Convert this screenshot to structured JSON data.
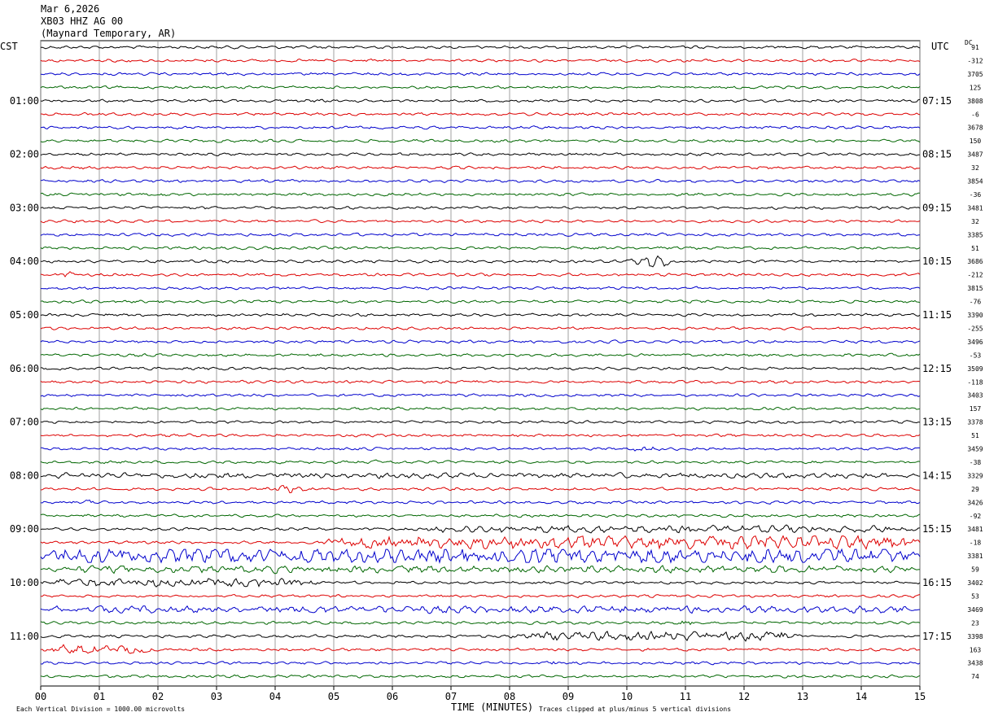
{
  "header": {
    "date": "Mar 6,2026",
    "station": "XB03 HHZ AG 00",
    "location": "(Maynard Temporary, AR)"
  },
  "left_axis_title": "CST",
  "right_axis_title": "UTC",
  "dc_label": "DC",
  "footer": {
    "scale_note": "Each Vertical Division = 1000.00 microvolts",
    "xlabel": "TIME (MINUTES)",
    "clip_note": "Traces clipped at plus/minus 5 vertical divisions"
  },
  "colors": {
    "trace_cycle": [
      "#000000",
      "#dd0000",
      "#0000cc",
      "#006600"
    ],
    "grid": "#888888"
  },
  "chart_data": {
    "type": "line",
    "title": "",
    "xlabel": "TIME (MINUTES)",
    "x_ticks": [
      "00",
      "01",
      "02",
      "03",
      "04",
      "05",
      "06",
      "07",
      "08",
      "09",
      "10",
      "11",
      "12",
      "13",
      "14",
      "15"
    ],
    "xlim": [
      0,
      15
    ],
    "trace_count": 48,
    "cst_labels": [
      "01:00",
      "02:00",
      "03:00",
      "04:00",
      "05:00",
      "06:00",
      "07:00",
      "08:00",
      "09:00",
      "10:00",
      "11:00"
    ],
    "utc_labels": [
      "07:15",
      "08:15",
      "09:15",
      "10:15",
      "11:15",
      "12:15",
      "13:15",
      "14:15",
      "15:15",
      "16:15",
      "17:15"
    ],
    "dc_offsets": [
      "91",
      "-312",
      "3705",
      "125",
      "3808",
      "-6",
      "3678",
      "150",
      "3487",
      "32",
      "3854",
      "-36",
      "3481",
      "32",
      "3385",
      "51",
      "3686",
      "-212",
      "3815",
      "-76",
      "3390",
      "-255",
      "3496",
      "-53",
      "3509",
      "-118",
      "3403",
      "157",
      "3378",
      "51",
      "3459",
      "-38",
      "3329",
      "29",
      "3426",
      "-92",
      "3481",
      "-18",
      "3381",
      "59",
      "3402",
      "53",
      "3469",
      "23",
      "3398",
      "163",
      "3438",
      "74"
    ],
    "activity_windows": [
      {
        "trace": 16,
        "x": [
          10.0,
          10.9
        ],
        "amp": 7
      },
      {
        "trace": 17,
        "x": [
          0.3,
          0.6
        ],
        "amp": 6
      },
      {
        "trace": 30,
        "x": [
          10.0,
          10.6
        ],
        "amp": 5
      },
      {
        "trace": 31,
        "x": [
          5.6,
          5.8
        ],
        "amp": 5
      },
      {
        "trace": 32,
        "x": [
          0.0,
          15.0
        ],
        "amp": 3
      },
      {
        "trace": 33,
        "x": [
          3.8,
          4.6
        ],
        "amp": 5
      },
      {
        "trace": 34,
        "x": [
          0.6,
          1.0
        ],
        "amp": 5
      },
      {
        "trace": 36,
        "x": [
          6.5,
          15.0
        ],
        "amp": 4
      },
      {
        "trace": 37,
        "x": [
          4.8,
          15.0
        ],
        "amp": 8
      },
      {
        "trace": 38,
        "x": [
          0.0,
          15.0
        ],
        "amp": 9
      },
      {
        "trace": 39,
        "x": [
          0.0,
          15.0
        ],
        "amp": 4
      },
      {
        "trace": 40,
        "x": [
          0.0,
          4.8
        ],
        "amp": 5
      },
      {
        "trace": 42,
        "x": [
          0.0,
          15.0
        ],
        "amp": 4
      },
      {
        "trace": 43,
        "x": [
          10.8,
          11.2
        ],
        "amp": 6
      },
      {
        "trace": 44,
        "x": [
          8.0,
          13.0
        ],
        "amp": 5
      },
      {
        "trace": 45,
        "x": [
          0.0,
          2.0
        ],
        "amp": 5
      },
      {
        "trace": 46,
        "x": [
          8.6,
          8.9
        ],
        "amp": 7
      }
    ]
  }
}
